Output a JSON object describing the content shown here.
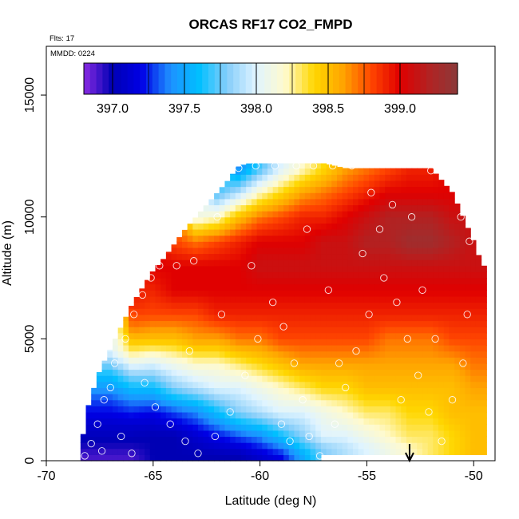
{
  "chart_data": {
    "type": "heatmap",
    "title": "ORCAS RF17 CO2_FMPD",
    "xlabel": "Latitude (deg N)",
    "ylabel": "Altitude (m)",
    "xlim": [
      -70,
      -49
    ],
    "ylim": [
      0,
      17000
    ],
    "x_ticks": [
      -70,
      -65,
      -60,
      -55,
      -50
    ],
    "y_ticks": [
      0,
      5000,
      10000,
      15000
    ],
    "notes": {
      "flights": "Flts: 17",
      "date": "MMDD: 0224"
    },
    "colorbar": {
      "range": [
        396.8,
        399.4
      ],
      "ticks": [
        397.0,
        397.5,
        398.0,
        398.5,
        399.0
      ],
      "tick_labels": [
        "397.0",
        "397.5",
        "398.0",
        "398.5",
        "399.0"
      ],
      "colors": [
        "#8a2be2",
        "#0000b4",
        "#0000e6",
        "#1e90ff",
        "#00bfff",
        "#87cefa",
        "#e0f4ff",
        "#fffacd",
        "#ffd700",
        "#ffa500",
        "#ff4500",
        "#e00000",
        "#b22222",
        "#8b3a3a"
      ]
    },
    "arrow_latitude": -53.0,
    "envelope": {
      "latitude": [
        -68.4,
        -68.0,
        -67.5,
        -67.0,
        -66.5,
        -66.0,
        -65.5,
        -65.0,
        -64.5,
        -64.0,
        -63.5,
        -63.0,
        -62.5,
        -62.0,
        -61.5,
        -61.0,
        -60.5,
        -60.0,
        -59.5,
        -59.0,
        -58.5,
        -58.0,
        -57.5,
        -57.0,
        -56.5,
        -56.0,
        -55.5,
        -55.0,
        -54.5,
        -54.0,
        -53.5,
        -53.0,
        -52.5,
        -52.0,
        -51.5,
        -51.0,
        -50.5,
        -50.0,
        -49.6
      ],
      "top_altitude": [
        500,
        2400,
        3700,
        4600,
        5500,
        6400,
        7100,
        7800,
        8300,
        8900,
        9500,
        10000,
        10500,
        11000,
        11500,
        12100,
        12200,
        12200,
        12200,
        12200,
        12200,
        12200,
        12200,
        12200,
        12100,
        12000,
        12000,
        12000,
        12000,
        12000,
        12000,
        12000,
        12000,
        12000,
        11500,
        11000,
        10000,
        9000,
        8000
      ],
      "bottom_altitude": [
        0,
        0,
        0,
        0,
        0,
        0,
        0,
        0,
        0,
        0,
        0,
        0,
        0,
        0,
        0,
        0,
        0,
        0,
        0,
        0,
        0,
        0,
        0,
        300,
        300,
        300,
        300,
        300,
        300,
        300,
        300,
        300,
        300,
        300,
        300,
        300,
        300,
        300,
        300
      ]
    },
    "profiles": [
      {
        "latitude": -68.0,
        "altitude": [],
        "co2": []
      },
      {
        "latitude": -67.0,
        "altitude": [
          200,
          800,
          1500,
          2500,
          3500,
          4500
        ],
        "co2": [
          396.9,
          397.0,
          397.1,
          397.3,
          397.6,
          398.0
        ]
      },
      {
        "latitude": -66.0,
        "altitude": [
          200,
          800,
          1500,
          2500,
          3500,
          4500,
          5500,
          6500
        ],
        "co2": [
          396.9,
          397.0,
          397.1,
          397.4,
          397.8,
          398.3,
          398.7,
          398.9
        ]
      },
      {
        "latitude": -65.0,
        "altitude": [
          200,
          1000,
          2000,
          3000,
          4000,
          5000,
          6000,
          7000,
          8000
        ],
        "co2": [
          397.0,
          397.0,
          397.2,
          397.6,
          398.0,
          398.5,
          398.8,
          398.9,
          399.0
        ]
      },
      {
        "latitude": -64.0,
        "altitude": [
          200,
          1000,
          2000,
          3000,
          4000,
          5000,
          6000,
          7000,
          8000,
          9000
        ],
        "co2": [
          397.0,
          397.0,
          397.3,
          397.8,
          398.1,
          398.5,
          398.8,
          399.0,
          399.0,
          398.8
        ]
      },
      {
        "latitude": -63.0,
        "altitude": [
          200,
          1000,
          2000,
          3000,
          4000,
          5000,
          6000,
          7000,
          8000,
          9000,
          10000
        ],
        "co2": [
          397.0,
          397.1,
          397.4,
          397.9,
          398.2,
          398.6,
          398.8,
          399.0,
          399.0,
          398.7,
          398.1
        ]
      },
      {
        "latitude": -62.0,
        "altitude": [
          200,
          1000,
          2000,
          3000,
          4000,
          5000,
          6000,
          7000,
          8000,
          9000,
          10000,
          11000
        ],
        "co2": [
          397.0,
          397.2,
          397.6,
          398.0,
          398.2,
          398.6,
          398.9,
          399.0,
          399.0,
          398.8,
          398.2,
          397.7
        ]
      },
      {
        "latitude": -61.0,
        "altitude": [
          200,
          1000,
          2000,
          3000,
          4000,
          5000,
          6000,
          7000,
          8000,
          9000,
          10000,
          11000,
          12000
        ],
        "co2": [
          397.0,
          397.3,
          397.8,
          398.0,
          398.3,
          398.7,
          398.9,
          399.0,
          399.0,
          398.9,
          398.5,
          397.9,
          397.4
        ]
      },
      {
        "latitude": -60.0,
        "altitude": [
          200,
          1000,
          2000,
          3000,
          4000,
          5000,
          6000,
          7000,
          8000,
          9000,
          10000,
          11000,
          12000
        ],
        "co2": [
          397.1,
          397.4,
          397.9,
          398.1,
          398.4,
          398.7,
          398.9,
          399.0,
          399.1,
          399.0,
          398.7,
          398.2,
          397.7
        ]
      },
      {
        "latitude": -59.0,
        "altitude": [
          200,
          1000,
          2000,
          3000,
          4000,
          5000,
          6000,
          7000,
          8000,
          9000,
          10000,
          11000,
          12000
        ],
        "co2": [
          397.2,
          397.6,
          398.0,
          398.2,
          398.5,
          398.8,
          398.9,
          399.0,
          399.1,
          399.0,
          398.8,
          398.4,
          398.0
        ]
      },
      {
        "latitude": -58.0,
        "altitude": [
          200,
          1000,
          2000,
          3000,
          4000,
          5000,
          6000,
          7000,
          8000,
          9000,
          10000,
          11000,
          12000
        ],
        "co2": [
          397.5,
          397.8,
          398.0,
          398.3,
          398.6,
          398.8,
          398.9,
          399.0,
          399.1,
          399.0,
          398.9,
          398.6,
          398.2
        ]
      },
      {
        "latitude": -57.0,
        "altitude": [
          500,
          1000,
          2000,
          3000,
          4000,
          5000,
          6000,
          7000,
          8000,
          9000,
          10000,
          11000,
          12000
        ],
        "co2": [
          397.8,
          398.0,
          398.1,
          398.4,
          398.6,
          398.8,
          398.9,
          399.0,
          399.1,
          399.1,
          398.9,
          398.7,
          398.4
        ]
      },
      {
        "latitude": -56.0,
        "altitude": [
          500,
          1000,
          2000,
          3000,
          4000,
          5000,
          6000,
          7000,
          8000,
          9000,
          10000,
          11000,
          12000
        ],
        "co2": [
          397.9,
          398.0,
          398.2,
          398.4,
          398.6,
          398.8,
          398.9,
          399.0,
          399.1,
          399.1,
          399.0,
          398.8,
          398.6
        ]
      },
      {
        "latitude": -55.0,
        "altitude": [
          500,
          1000,
          2000,
          3000,
          4000,
          5000,
          6000,
          7000,
          8000,
          9000,
          10000,
          11000,
          12000
        ],
        "co2": [
          398.0,
          398.1,
          398.3,
          398.5,
          398.6,
          398.8,
          398.9,
          399.0,
          399.1,
          399.2,
          399.1,
          398.9,
          398.7
        ]
      },
      {
        "latitude": -54.0,
        "altitude": [
          500,
          1000,
          2000,
          3000,
          4000,
          5000,
          6000,
          7000,
          8000,
          9000,
          10000,
          11000,
          12000
        ],
        "co2": [
          398.1,
          398.2,
          398.3,
          398.5,
          398.6,
          398.7,
          398.9,
          399.0,
          399.1,
          399.2,
          399.2,
          399.0,
          398.8
        ]
      },
      {
        "latitude": -53.0,
        "altitude": [
          500,
          1000,
          2000,
          3000,
          4000,
          5000,
          6000,
          7000,
          8000,
          9000,
          10000,
          11000,
          12000
        ],
        "co2": [
          398.2,
          398.3,
          398.4,
          398.5,
          398.6,
          398.7,
          398.9,
          399.0,
          399.1,
          399.3,
          399.2,
          399.0,
          398.9
        ]
      },
      {
        "latitude": -52.0,
        "altitude": [
          500,
          1000,
          2000,
          3000,
          4000,
          5000,
          6000,
          7000,
          8000,
          9000,
          10000,
          11000,
          12000
        ],
        "co2": [
          398.3,
          398.3,
          398.4,
          398.5,
          398.6,
          398.7,
          398.9,
          399.0,
          399.1,
          399.3,
          399.2,
          399.0,
          398.9
        ]
      },
      {
        "latitude": -51.0,
        "altitude": [
          500,
          1000,
          2000,
          3000,
          4000,
          5000,
          6000,
          7000,
          8000,
          9000,
          10000,
          11000
        ],
        "co2": [
          398.4,
          398.4,
          398.5,
          398.5,
          398.6,
          398.8,
          398.9,
          399.0,
          399.1,
          399.2,
          399.1,
          399.0
        ]
      },
      {
        "latitude": -50.0,
        "altitude": [
          500,
          1000,
          2000,
          3000,
          4000,
          5000,
          6000,
          7000,
          8000,
          9000
        ],
        "co2": [
          398.5,
          398.5,
          398.5,
          398.6,
          398.7,
          398.8,
          398.9,
          399.0,
          399.1,
          399.1
        ]
      }
    ],
    "observations": [
      {
        "lat": -68.2,
        "alt": 200
      },
      {
        "lat": -67.9,
        "alt": 700
      },
      {
        "lat": -67.6,
        "alt": 1500
      },
      {
        "lat": -67.3,
        "alt": 2500
      },
      {
        "lat": -67.0,
        "alt": 3000
      },
      {
        "lat": -66.8,
        "alt": 4000
      },
      {
        "lat": -66.3,
        "alt": 5000
      },
      {
        "lat": -65.9,
        "alt": 6000
      },
      {
        "lat": -65.5,
        "alt": 6800
      },
      {
        "lat": -65.1,
        "alt": 7500
      },
      {
        "lat": -64.7,
        "alt": 8000
      },
      {
        "lat": -63.9,
        "alt": 8000
      },
      {
        "lat": -63.1,
        "alt": 8200
      },
      {
        "lat": -62.0,
        "alt": 10000
      },
      {
        "lat": -61.0,
        "alt": 12000
      },
      {
        "lat": -60.2,
        "alt": 12100
      },
      {
        "lat": -59.3,
        "alt": 12100
      },
      {
        "lat": -58.3,
        "alt": 12100
      },
      {
        "lat": -57.5,
        "alt": 12100
      },
      {
        "lat": -56.6,
        "alt": 12100
      },
      {
        "lat": -55.7,
        "alt": 12100
      },
      {
        "lat": -54.8,
        "alt": 11000
      },
      {
        "lat": -53.8,
        "alt": 10500
      },
      {
        "lat": -52.9,
        "alt": 10000
      },
      {
        "lat": -52.0,
        "alt": 11900
      },
      {
        "lat": -51.3,
        "alt": 11900
      },
      {
        "lat": -50.6,
        "alt": 10000
      },
      {
        "lat": -50.2,
        "alt": 9000
      },
      {
        "lat": -64.9,
        "alt": 2200
      },
      {
        "lat": -64.2,
        "alt": 1500
      },
      {
        "lat": -63.5,
        "alt": 800
      },
      {
        "lat": -62.9,
        "alt": 300
      },
      {
        "lat": -62.1,
        "alt": 1000
      },
      {
        "lat": -61.4,
        "alt": 2000
      },
      {
        "lat": -60.7,
        "alt": 3500
      },
      {
        "lat": -60.1,
        "alt": 5000
      },
      {
        "lat": -59.4,
        "alt": 6500
      },
      {
        "lat": -58.9,
        "alt": 5500
      },
      {
        "lat": -58.4,
        "alt": 4000
      },
      {
        "lat": -58.0,
        "alt": 2500
      },
      {
        "lat": -57.7,
        "alt": 1000
      },
      {
        "lat": -57.2,
        "alt": 200
      },
      {
        "lat": -56.5,
        "alt": 1500
      },
      {
        "lat": -56.0,
        "alt": 3000
      },
      {
        "lat": -55.5,
        "alt": 4500
      },
      {
        "lat": -54.9,
        "alt": 6000
      },
      {
        "lat": -54.2,
        "alt": 7500
      },
      {
        "lat": -53.6,
        "alt": 6500
      },
      {
        "lat": -53.1,
        "alt": 5000
      },
      {
        "lat": -52.6,
        "alt": 3500
      },
      {
        "lat": -52.1,
        "alt": 2000
      },
      {
        "lat": -51.5,
        "alt": 800
      },
      {
        "lat": -51.0,
        "alt": 2500
      },
      {
        "lat": -50.5,
        "alt": 4000
      },
      {
        "lat": -50.3,
        "alt": 6000
      },
      {
        "lat": -66.5,
        "alt": 1000
      },
      {
        "lat": -66.0,
        "alt": 300
      },
      {
        "lat": -61.8,
        "alt": 6000
      },
      {
        "lat": -60.4,
        "alt": 8000
      },
      {
        "lat": -57.8,
        "alt": 9500
      },
      {
        "lat": -56.8,
        "alt": 7000
      },
      {
        "lat": -55.2,
        "alt": 8500
      },
      {
        "lat": -54.4,
        "alt": 9500
      },
      {
        "lat": -52.4,
        "alt": 7000
      },
      {
        "lat": -51.8,
        "alt": 5000
      },
      {
        "lat": -56.3,
        "alt": 4000
      },
      {
        "lat": -53.4,
        "alt": 2500
      },
      {
        "lat": -59.0,
        "alt": 1500
      },
      {
        "lat": -58.6,
        "alt": 800
      },
      {
        "lat": -63.3,
        "alt": 4500
      },
      {
        "lat": -65.4,
        "alt": 3200
      },
      {
        "lat": -67.4,
        "alt": 400
      }
    ]
  }
}
